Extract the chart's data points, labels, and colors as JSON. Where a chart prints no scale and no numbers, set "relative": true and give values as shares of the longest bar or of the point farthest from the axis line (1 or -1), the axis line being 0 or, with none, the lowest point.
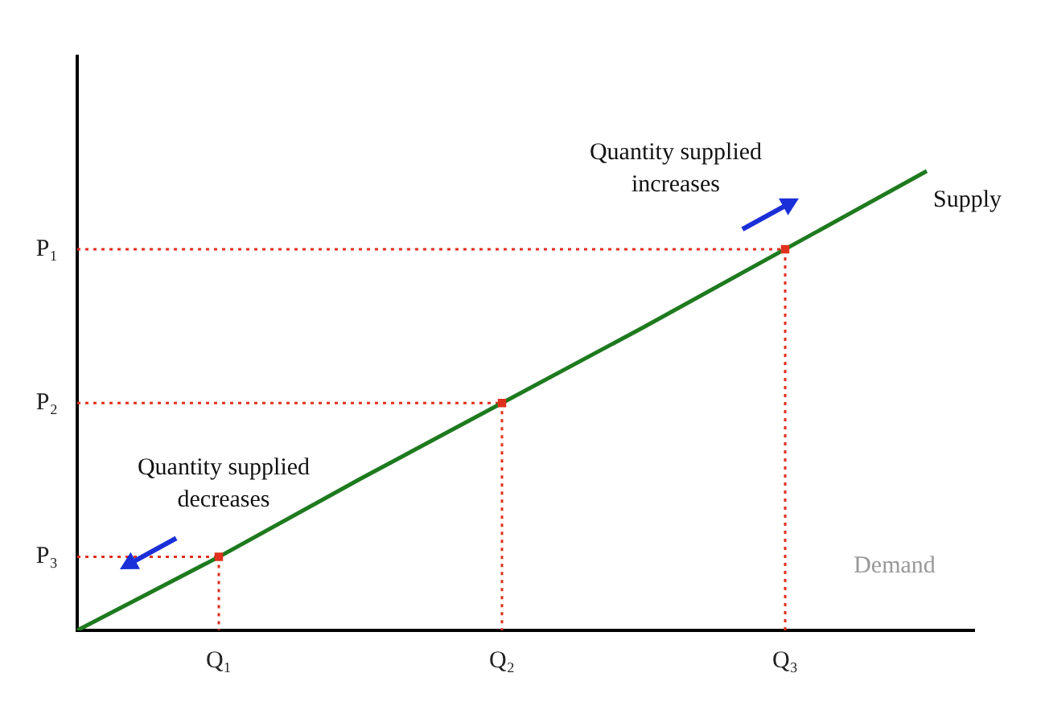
{
  "chart_data": {
    "type": "line",
    "relative": true,
    "categories": [
      null,
      "Q₁",
      null,
      "Q₂",
      null,
      "Q₃",
      null
    ],
    "series": [
      {
        "name": "Supply",
        "color": "#1e7a1e",
        "values": [
          0,
          0.16,
          0.33,
          0.495,
          0.66,
          0.83,
          1
        ],
        "marker": "none"
      },
      {
        "type": "scatter",
        "color": "#e0301e",
        "values": [
          null,
          0.16,
          null,
          0.495,
          null,
          0.83,
          null
        ],
        "marker": "square"
      }
    ],
    "ref_lines": [
      {
        "axis": "y",
        "value": 0.83,
        "label": "P₁",
        "color": "#e0301e",
        "line_style": "dotted"
      },
      {
        "axis": "y",
        "value": 0.495,
        "label": "P₂",
        "color": "#e0301e",
        "line_style": "dotted"
      },
      {
        "axis": "y",
        "value": 0.16,
        "label": "P₃",
        "color": "#e0301e",
        "line_style": "dotted"
      }
    ],
    "annotations": [
      {
        "text": "Quantity supplied increases",
        "x": "Q₃",
        "y": 0.83
      },
      {
        "text": "Quantity supplied decreases",
        "x": "Q₁",
        "y": 0.16
      },
      "Demand"
    ]
  }
}
